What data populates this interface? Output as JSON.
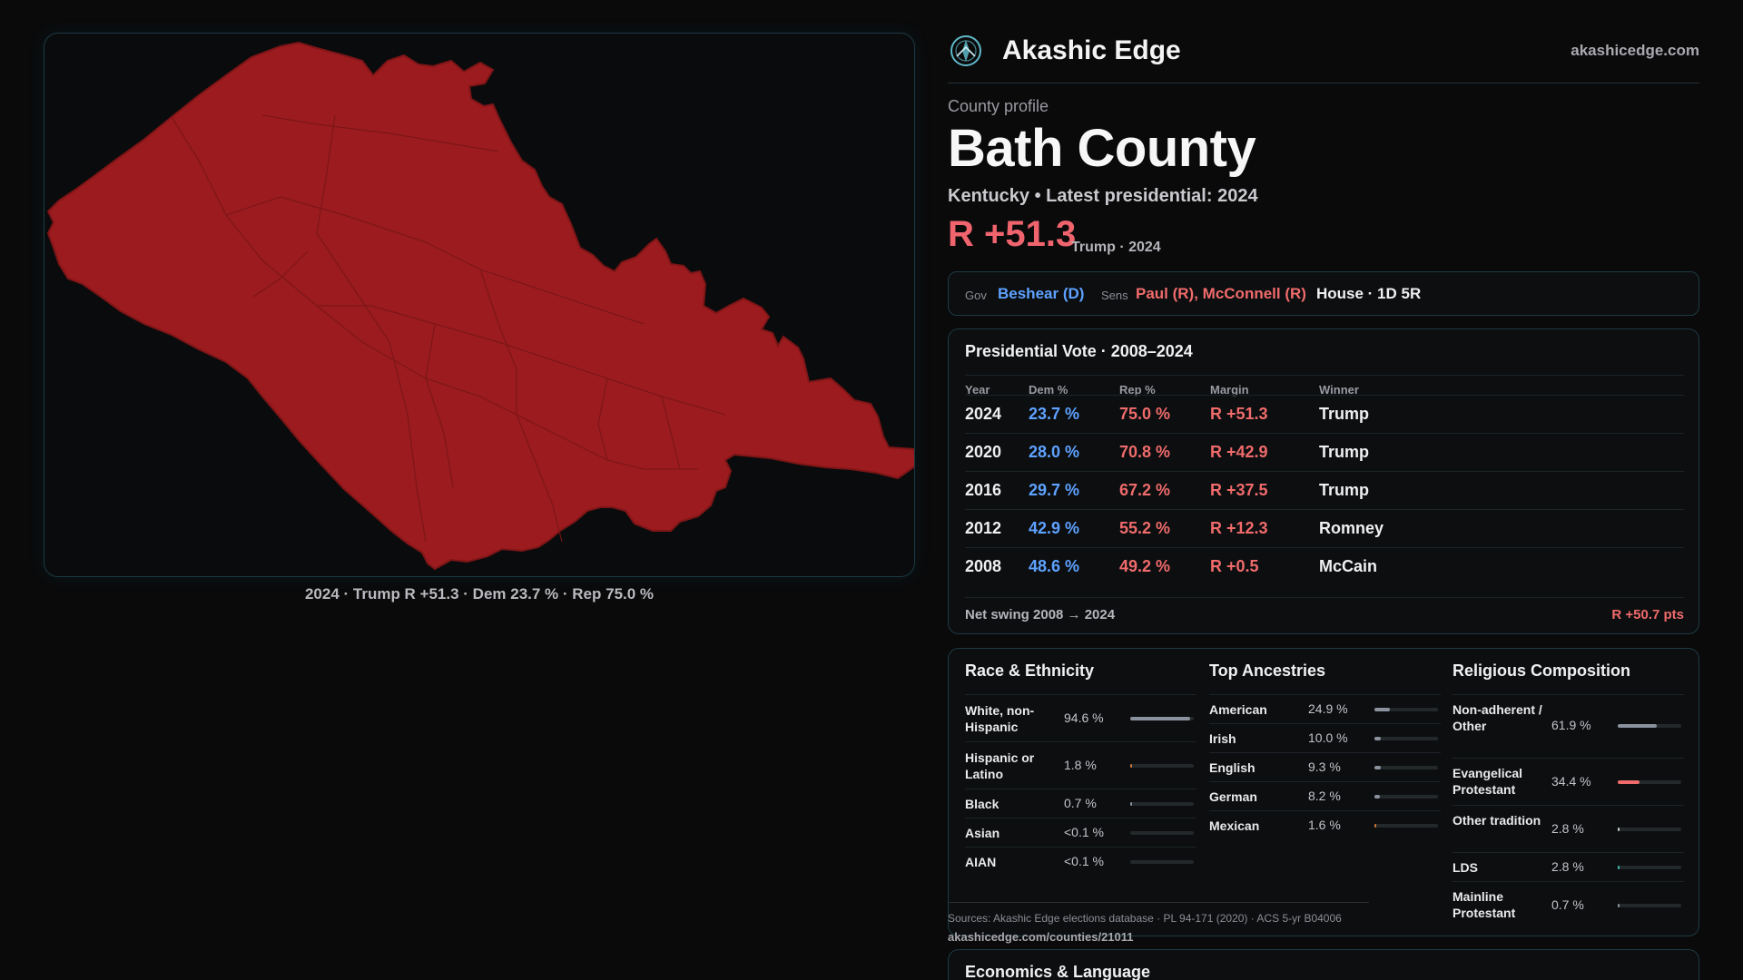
{
  "map": {
    "caption": "2024 · Trump R +51.3 · Dem 23.7 % · Rep 75.0 %",
    "fill_color": "#9b1b1e",
    "stroke_color": "#7d1517"
  },
  "brand": {
    "name": "Akashic Edge",
    "url": "akashicedge.com",
    "logo_icon": "compass-logo-icon"
  },
  "profile": {
    "eyebrow": "County profile",
    "title": "Bath County",
    "subline": "Kentucky • Latest presidential: 2024",
    "headline_margin": "R +51.3",
    "headline_note": "Trump · 2024"
  },
  "officials": {
    "gov_label": "Gov",
    "gov_value": "Beshear (D)",
    "sens_label": "Sens",
    "sens_value": "Paul (R), McConnell (R)",
    "house": "House · 1D 5R"
  },
  "presidential": {
    "title": "Presidential Vote · 2008–2024",
    "columns": [
      "Year",
      "Dem %",
      "Rep %",
      "Margin",
      "Winner"
    ],
    "rows": [
      {
        "year": "2024",
        "dem": "23.7 %",
        "rep": "75.0 %",
        "margin": "R +51.3",
        "winner": "Trump"
      },
      {
        "year": "2020",
        "dem": "28.0 %",
        "rep": "70.8 %",
        "margin": "R +42.9",
        "winner": "Trump"
      },
      {
        "year": "2016",
        "dem": "29.7 %",
        "rep": "67.2 %",
        "margin": "R +37.5",
        "winner": "Trump"
      },
      {
        "year": "2012",
        "dem": "42.9 %",
        "rep": "55.2 %",
        "margin": "R +12.3",
        "winner": "Romney"
      },
      {
        "year": "2008",
        "dem": "48.6 %",
        "rep": "49.2 %",
        "margin": "R +0.5",
        "winner": "McCain"
      }
    ],
    "swing_label": "Net swing 2008 → 2024",
    "swing_value": "R +50.7 pts"
  },
  "race": {
    "title": "Race & Ethnicity",
    "rows": [
      {
        "name": "White, non-Hispanic",
        "pct": "94.6 %",
        "share": 0.946,
        "color": "#8a929e"
      },
      {
        "name": "Hispanic or Latino",
        "pct": "1.8 %",
        "share": 0.018,
        "color": "#c8783c"
      },
      {
        "name": "Black",
        "pct": "0.7 %",
        "share": 0.007,
        "color": "#8a929e"
      },
      {
        "name": "Asian",
        "pct": "<0.1 %",
        "share": 0.0,
        "color": "#8a929e"
      },
      {
        "name": "AIAN",
        "pct": "<0.1 %",
        "share": 0.0,
        "color": "#8a929e"
      }
    ]
  },
  "ancestry": {
    "title": "Top Ancestries",
    "rows": [
      {
        "name": "American",
        "pct": "24.9 %",
        "share": 0.249,
        "color": "#8a929e"
      },
      {
        "name": "Irish",
        "pct": "10.0 %",
        "share": 0.1,
        "color": "#8a929e"
      },
      {
        "name": "English",
        "pct": "9.3 %",
        "share": 0.093,
        "color": "#8a929e"
      },
      {
        "name": "German",
        "pct": "8.2 %",
        "share": 0.082,
        "color": "#8a929e"
      },
      {
        "name": "Mexican",
        "pct": "1.6 %",
        "share": 0.016,
        "color": "#c8783c"
      }
    ]
  },
  "religion": {
    "title": "Religious Composition",
    "rows": [
      {
        "name": "Non-adherent / Other",
        "pct": "61.9 %",
        "share": 0.619,
        "color": "#8a929e"
      },
      {
        "name": "Evangelical Protestant",
        "pct": "34.4 %",
        "share": 0.344,
        "color": "#f06b6b"
      },
      {
        "name": "Other tradition",
        "pct": "2.8 %",
        "share": 0.028,
        "color": "#c8c8c8"
      },
      {
        "name": "LDS",
        "pct": "2.8 %",
        "share": 0.028,
        "color": "#3fb6a8"
      },
      {
        "name": "Mainline Protestant",
        "pct": "0.7 %",
        "share": 0.007,
        "color": "#8a929e"
      }
    ]
  },
  "sources": {
    "text": "Sources: Akashic Edge elections database · PL 94-171 (2020) · ACS 5-yr B04006",
    "url": "akashicedge.com/counties/21011"
  },
  "economics": {
    "title": "Economics & Language"
  }
}
